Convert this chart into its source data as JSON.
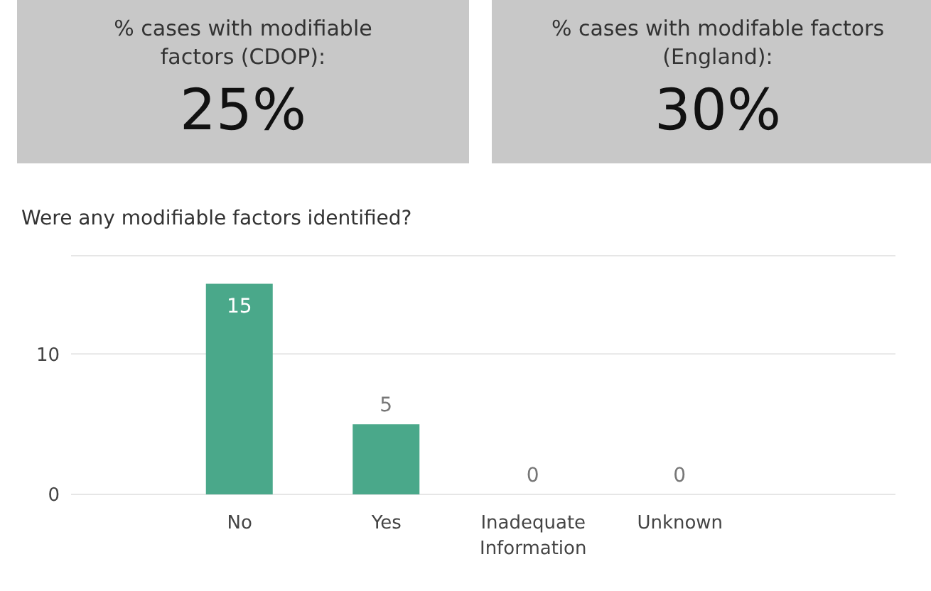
{
  "chart_data": [
    {
      "type": "other",
      "title": "% cases with modifiable factors (CDOP):",
      "annotations": [
        "25%"
      ]
    },
    {
      "type": "other",
      "title": "% cases with modifable factors (England):",
      "annotations": [
        "30%"
      ]
    },
    {
      "type": "bar",
      "title": "Were any modifiable factors identified?",
      "categories": [
        "No",
        "Yes",
        "Inadequate Information",
        "Unknown"
      ],
      "values": [
        15,
        5,
        0,
        0
      ],
      "color": "#4aa88a",
      "ylim": [
        0,
        17
      ],
      "yticks": [
        0,
        10
      ],
      "grid": "y",
      "data_labels": true
    }
  ]
}
